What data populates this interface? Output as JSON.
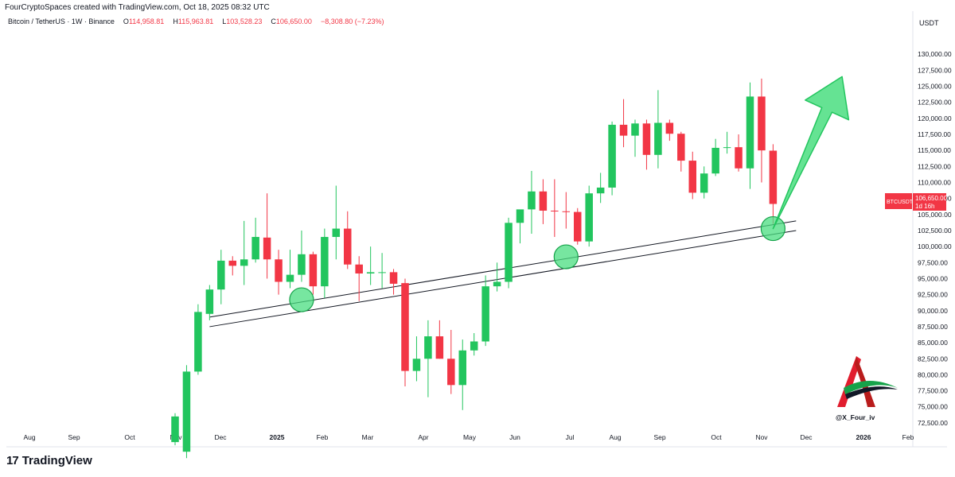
{
  "caption": "FourCryptoSpaces created with TradingView.com, Oct 18, 2025 08:32 UTC",
  "symbol_line": "Bitcoin / TetherUS · 1W · Binance",
  "ohlc": {
    "o_label": "O",
    "o_value": "114,958.81",
    "h_label": "H",
    "h_value": "115,963.81",
    "l_label": "L",
    "l_value": "103,528.23",
    "c_label": "C",
    "c_value": "106,650.00",
    "change": "−8,308.80 (−7.23%)"
  },
  "currency_label": "USDT",
  "price_tag": {
    "symbol": "BTCUSDT",
    "price": "106,650.00",
    "countdown": "1d 16h"
  },
  "watermark": "@X_Four_iv",
  "brand": {
    "logo": "17",
    "name": "TradingView"
  },
  "colors": {
    "up": "#22c55e",
    "down": "#f23645",
    "highlight": "#4ade80",
    "line": "#131722"
  },
  "chart_data": {
    "type": "candlestick",
    "interval": "1W",
    "x_labels": [
      "Aug",
      "Sep",
      "Oct",
      "Nov",
      "Dec",
      "2025",
      "Feb",
      "Mar",
      "Apr",
      "May",
      "Jun",
      "Jul",
      "Aug",
      "Sep",
      "Oct",
      "Nov",
      "Dec",
      "2026",
      "Feb"
    ],
    "y_ticks": [
      72500,
      75000,
      77500,
      80000,
      82500,
      85000,
      87500,
      90000,
      92500,
      95000,
      97500,
      100000,
      102500,
      105000,
      107500,
      110000,
      112500,
      115000,
      117500,
      120000,
      122500,
      125000,
      127500,
      130000
    ],
    "ylim": [
      71000,
      133500
    ],
    "grid": false,
    "candles": [
      {
        "w": 0,
        "o": 69500,
        "h": 74000,
        "l": 69000,
        "c": 73500
      },
      {
        "w": 1,
        "o": 68000,
        "h": 81500,
        "l": 67000,
        "c": 80500
      },
      {
        "w": 2,
        "o": 80500,
        "h": 91000,
        "l": 80000,
        "c": 89800
      },
      {
        "w": 3,
        "o": 89500,
        "h": 94000,
        "l": 88500,
        "c": 93300
      },
      {
        "w": 4,
        "o": 93300,
        "h": 99500,
        "l": 91000,
        "c": 97800
      },
      {
        "w": 5,
        "o": 97800,
        "h": 98500,
        "l": 95500,
        "c": 97000
      },
      {
        "w": 6,
        "o": 97000,
        "h": 104000,
        "l": 94000,
        "c": 98000
      },
      {
        "w": 7,
        "o": 98000,
        "h": 104500,
        "l": 97500,
        "c": 101500
      },
      {
        "w": 8,
        "o": 101400,
        "h": 108300,
        "l": 95000,
        "c": 98000
      },
      {
        "w": 9,
        "o": 98000,
        "h": 99500,
        "l": 92500,
        "c": 94500
      },
      {
        "w": 10,
        "o": 94500,
        "h": 99500,
        "l": 93500,
        "c": 95600
      },
      {
        "w": 11,
        "o": 95600,
        "h": 102500,
        "l": 94500,
        "c": 98800
      },
      {
        "w": 12,
        "o": 98800,
        "h": 99200,
        "l": 92500,
        "c": 93800
      },
      {
        "w": 13,
        "o": 93800,
        "h": 102800,
        "l": 92000,
        "c": 101500
      },
      {
        "w": 14,
        "o": 101500,
        "h": 109500,
        "l": 98000,
        "c": 102800
      },
      {
        "w": 15,
        "o": 102800,
        "h": 105500,
        "l": 96500,
        "c": 97200
      },
      {
        "w": 16,
        "o": 97200,
        "h": 98500,
        "l": 91500,
        "c": 95800
      },
      {
        "w": 17,
        "o": 95800,
        "h": 100000,
        "l": 94000,
        "c": 96000
      },
      {
        "w": 18,
        "o": 96000,
        "h": 99000,
        "l": 93500,
        "c": 96000
      },
      {
        "w": 19,
        "o": 96000,
        "h": 96500,
        "l": 92500,
        "c": 94200
      },
      {
        "w": 20,
        "o": 94300,
        "h": 95000,
        "l": 78200,
        "c": 80600
      },
      {
        "w": 21,
        "o": 80600,
        "h": 86000,
        "l": 79000,
        "c": 82500
      },
      {
        "w": 22,
        "o": 82500,
        "h": 88500,
        "l": 76500,
        "c": 86000
      },
      {
        "w": 23,
        "o": 86000,
        "h": 88500,
        "l": 82500,
        "c": 82500
      },
      {
        "w": 24,
        "o": 82500,
        "h": 87000,
        "l": 77000,
        "c": 78400
      },
      {
        "w": 25,
        "o": 78400,
        "h": 85500,
        "l": 74500,
        "c": 83800
      },
      {
        "w": 26,
        "o": 83800,
        "h": 86500,
        "l": 83000,
        "c": 85200
      },
      {
        "w": 27,
        "o": 85200,
        "h": 95500,
        "l": 84500,
        "c": 93800
      },
      {
        "w": 28,
        "o": 93800,
        "h": 97500,
        "l": 93000,
        "c": 94500
      },
      {
        "w": 29,
        "o": 94500,
        "h": 104500,
        "l": 93500,
        "c": 103700
      },
      {
        "w": 30,
        "o": 103700,
        "h": 105500,
        "l": 100500,
        "c": 105800
      },
      {
        "w": 31,
        "o": 105800,
        "h": 111800,
        "l": 102000,
        "c": 108600
      },
      {
        "w": 32,
        "o": 108600,
        "h": 110500,
        "l": 103500,
        "c": 105600
      },
      {
        "w": 33,
        "o": 105600,
        "h": 110500,
        "l": 101500,
        "c": 105500
      },
      {
        "w": 34,
        "o": 105500,
        "h": 108500,
        "l": 102800,
        "c": 105400
      },
      {
        "w": 35,
        "o": 105400,
        "h": 106000,
        "l": 100300,
        "c": 100800
      },
      {
        "w": 36,
        "o": 100800,
        "h": 109500,
        "l": 100000,
        "c": 108300
      },
      {
        "w": 37,
        "o": 108300,
        "h": 111500,
        "l": 106800,
        "c": 109200
      },
      {
        "w": 38,
        "o": 109200,
        "h": 119500,
        "l": 108000,
        "c": 119000
      },
      {
        "w": 39,
        "o": 119000,
        "h": 123000,
        "l": 115500,
        "c": 117300
      },
      {
        "w": 40,
        "o": 117300,
        "h": 119800,
        "l": 114000,
        "c": 119200
      },
      {
        "w": 41,
        "o": 119200,
        "h": 119800,
        "l": 112000,
        "c": 114300
      },
      {
        "w": 42,
        "o": 114300,
        "h": 124400,
        "l": 112200,
        "c": 119300
      },
      {
        "w": 43,
        "o": 119300,
        "h": 119800,
        "l": 116500,
        "c": 117600
      },
      {
        "w": 44,
        "o": 117600,
        "h": 117900,
        "l": 111700,
        "c": 113400
      },
      {
        "w": 45,
        "o": 113400,
        "h": 114800,
        "l": 107400,
        "c": 108400
      },
      {
        "w": 46,
        "o": 108400,
        "h": 112500,
        "l": 107500,
        "c": 111400
      },
      {
        "w": 47,
        "o": 111400,
        "h": 116800,
        "l": 111000,
        "c": 115400
      },
      {
        "w": 48,
        "o": 115400,
        "h": 117900,
        "l": 114500,
        "c": 115500
      },
      {
        "w": 49,
        "o": 115500,
        "h": 117500,
        "l": 111700,
        "c": 112200
      },
      {
        "w": 50,
        "o": 112200,
        "h": 125600,
        "l": 109000,
        "c": 123400
      },
      {
        "w": 51,
        "o": 123400,
        "h": 126200,
        "l": 110000,
        "c": 115000
      },
      {
        "w": 52,
        "o": 114958.81,
        "h": 115963.81,
        "l": 103528.23,
        "c": 106650
      }
    ],
    "trendlines": [
      {
        "p1": {
          "w": 3,
          "price": 89000
        },
        "p2": {
          "w": 54,
          "price": 104000
        }
      },
      {
        "p1": {
          "w": 3,
          "price": 87500
        },
        "p2": {
          "w": 54,
          "price": 102500
        }
      }
    ],
    "highlights": [
      {
        "w": 11,
        "price": 91700
      },
      {
        "w": 34,
        "price": 98400
      },
      {
        "w": 52,
        "price": 102800
      }
    ],
    "projection_arrow": {
      "from": {
        "w": 52,
        "price": 102800
      },
      "to": {
        "w": 58,
        "price": 126500
      }
    }
  }
}
